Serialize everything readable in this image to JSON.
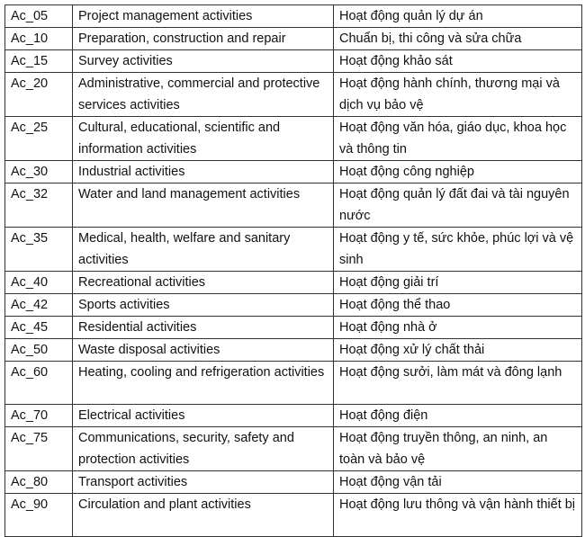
{
  "rows": [
    {
      "code": "Ac_05",
      "en": "Project management activities",
      "vi": "Hoạt động quản lý dự án"
    },
    {
      "code": "Ac_10",
      "en": "Preparation, construction and repair",
      "vi": "Chuẩn bị, thi công và sửa chữa"
    },
    {
      "code": "Ac_15",
      "en": "Survey activities",
      "vi": "Hoạt động khảo sát"
    },
    {
      "code": "Ac_20",
      "en": "Administrative, commercial and protective services activities",
      "vi": "Hoạt động hành chính, thương mại và dịch vụ bảo vệ"
    },
    {
      "code": "Ac_25",
      "en": "Cultural, educational, scientific and information activities",
      "vi": "Hoạt động văn hóa, giáo dục, khoa học và thông tin"
    },
    {
      "code": "Ac_30",
      "en": "Industrial activities",
      "vi": "Hoạt động công nghiệp"
    },
    {
      "code": "Ac_32",
      "en": "Water and land management activities",
      "vi": "Hoạt động quản lý đất đai và tài nguyên nước"
    },
    {
      "code": "Ac_35",
      "en": "Medical, health, welfare and sanitary activities",
      "vi": "Hoạt động y tế, sức khỏe, phúc lợi và vệ sinh"
    },
    {
      "code": "Ac_40",
      "en": "Recreational activities",
      "vi": "Hoạt động giải trí"
    },
    {
      "code": "Ac_42",
      "en": "Sports activities",
      "vi": "Hoạt động thể thao"
    },
    {
      "code": "Ac_45",
      "en": "Residential activities",
      "vi": "Hoạt động nhà ở"
    },
    {
      "code": "Ac_50",
      "en": "Waste disposal activities",
      "vi": "Hoạt động xử lý chất thải"
    },
    {
      "code": "Ac_60",
      "en": "Heating, cooling and refrigeration activities",
      "vi": "Hoạt động sưởi, làm mát và đông lạnh"
    },
    {
      "code": "Ac_70",
      "en": "Electrical activities",
      "vi": "Hoạt động điện"
    },
    {
      "code": "Ac_75",
      "en": "Communications, security, safety and protection activities",
      "vi": "Hoạt động truyền thông, an ninh, an toàn và bảo vệ"
    },
    {
      "code": "Ac_80",
      "en": "Transport activities",
      "vi": "Hoạt động vận tải"
    },
    {
      "code": "Ac_90",
      "en": "Circulation and plant activities",
      "vi": "Hoạt động lưu thông và vận hành thiết bị"
    }
  ]
}
